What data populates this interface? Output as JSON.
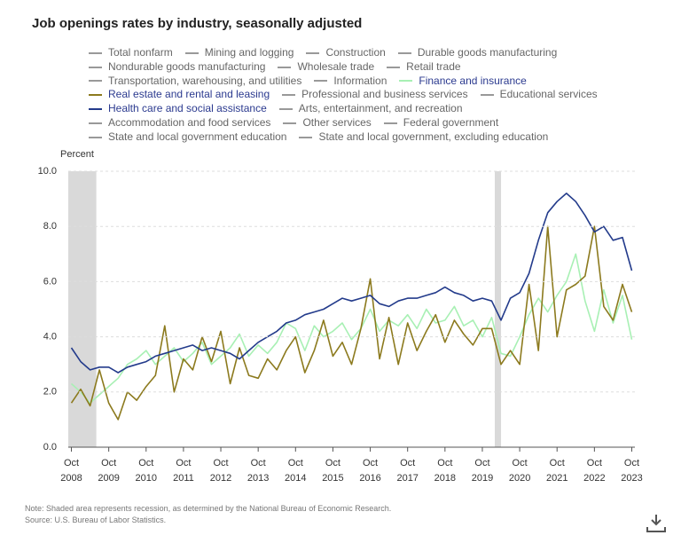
{
  "chart_data": {
    "type": "line",
    "title": "Job openings rates by industry, seasonally adjusted",
    "ylabel": "Percent",
    "x": [
      "2008-10",
      "2009-01",
      "2009-04",
      "2009-07",
      "2009-10",
      "2010-01",
      "2010-04",
      "2010-07",
      "2010-10",
      "2011-01",
      "2011-04",
      "2011-07",
      "2011-10",
      "2012-01",
      "2012-04",
      "2012-07",
      "2012-10",
      "2013-01",
      "2013-04",
      "2013-07",
      "2013-10",
      "2014-01",
      "2014-04",
      "2014-07",
      "2014-10",
      "2015-01",
      "2015-04",
      "2015-07",
      "2015-10",
      "2016-01",
      "2016-04",
      "2016-07",
      "2016-10",
      "2017-01",
      "2017-04",
      "2017-07",
      "2017-10",
      "2018-01",
      "2018-04",
      "2018-07",
      "2018-10",
      "2019-01",
      "2019-04",
      "2019-07",
      "2019-10",
      "2020-01",
      "2020-04",
      "2020-07",
      "2020-10",
      "2021-01",
      "2021-04",
      "2021-07",
      "2021-10",
      "2022-01",
      "2022-04",
      "2022-07",
      "2022-10",
      "2023-01",
      "2023-04",
      "2023-07",
      "2023-10"
    ],
    "series": [
      {
        "name": "Total nonfarm",
        "color": "#999999",
        "visible": false
      },
      {
        "name": "Mining and logging",
        "color": "#999999",
        "visible": false
      },
      {
        "name": "Construction",
        "color": "#999999",
        "visible": false
      },
      {
        "name": "Durable goods manufacturing",
        "color": "#999999",
        "visible": false
      },
      {
        "name": "Nondurable goods manufacturing",
        "color": "#999999",
        "visible": false
      },
      {
        "name": "Wholesale trade",
        "color": "#999999",
        "visible": false
      },
      {
        "name": "Retail trade",
        "color": "#999999",
        "visible": false
      },
      {
        "name": "Transportation, warehousing, and utilities",
        "color": "#999999",
        "visible": false
      },
      {
        "name": "Information",
        "color": "#999999",
        "visible": false
      },
      {
        "name": "Finance and insurance",
        "color": "#a8f0b4",
        "visible": true,
        "values": [
          2.3,
          2.0,
          1.6,
          1.9,
          2.2,
          2.5,
          3.0,
          3.2,
          3.5,
          3.0,
          3.3,
          3.6,
          3.1,
          3.4,
          3.8,
          3.0,
          3.3,
          3.6,
          4.1,
          3.3,
          3.7,
          3.4,
          3.8,
          4.5,
          4.3,
          3.5,
          4.4,
          4.0,
          4.2,
          4.5,
          3.9,
          4.3,
          5.0,
          4.2,
          4.6,
          4.4,
          4.8,
          4.3,
          5.0,
          4.5,
          4.6,
          5.1,
          4.4,
          4.6,
          4.0,
          4.7,
          3.4,
          3.3,
          4.0,
          4.8,
          5.4,
          4.9,
          5.5,
          6.0,
          7.0,
          5.3,
          4.2,
          5.7,
          4.5,
          5.5,
          3.9
        ]
      },
      {
        "name": "Real estate and rental and leasing",
        "color": "#8c7a1e",
        "visible": true,
        "values": [
          1.6,
          2.1,
          1.5,
          2.8,
          1.6,
          1.0,
          2.0,
          1.7,
          2.2,
          2.6,
          4.4,
          2.0,
          3.2,
          2.8,
          4.0,
          3.1,
          4.2,
          2.3,
          3.6,
          2.6,
          2.5,
          3.2,
          2.8,
          3.5,
          4.0,
          2.7,
          3.5,
          4.6,
          3.3,
          3.8,
          3.0,
          4.3,
          6.1,
          3.2,
          4.7,
          3.0,
          4.5,
          3.5,
          4.2,
          4.8,
          3.8,
          4.6,
          4.1,
          3.7,
          4.3,
          4.3,
          3.0,
          3.5,
          3.0,
          5.9,
          3.5,
          8.0,
          4.0,
          5.7,
          5.9,
          6.2,
          8.0,
          5.1,
          4.6,
          5.9,
          4.9
        ]
      },
      {
        "name": "Professional and business services",
        "color": "#999999",
        "visible": false
      },
      {
        "name": "Educational services",
        "color": "#999999",
        "visible": false
      },
      {
        "name": "Health care and social assistance",
        "color": "#233b8b",
        "visible": true,
        "values": [
          3.6,
          3.1,
          2.8,
          2.9,
          2.9,
          2.7,
          2.9,
          3.0,
          3.1,
          3.3,
          3.4,
          3.5,
          3.6,
          3.7,
          3.5,
          3.6,
          3.5,
          3.4,
          3.2,
          3.5,
          3.8,
          4.0,
          4.2,
          4.5,
          4.6,
          4.8,
          4.9,
          5.0,
          5.2,
          5.4,
          5.3,
          5.4,
          5.5,
          5.2,
          5.1,
          5.3,
          5.4,
          5.4,
          5.5,
          5.6,
          5.8,
          5.6,
          5.5,
          5.3,
          5.4,
          5.3,
          4.6,
          5.4,
          5.6,
          6.3,
          7.5,
          8.5,
          8.9,
          9.2,
          8.9,
          8.4,
          7.8,
          8.0,
          7.5,
          7.6,
          6.4
        ]
      },
      {
        "name": "Arts, entertainment, and recreation",
        "color": "#999999",
        "visible": false
      },
      {
        "name": "Accommodation and food services",
        "color": "#999999",
        "visible": false
      },
      {
        "name": "Other services",
        "color": "#999999",
        "visible": false
      },
      {
        "name": "Federal government",
        "color": "#999999",
        "visible": false
      },
      {
        "name": "State and local government education",
        "color": "#999999",
        "visible": false
      },
      {
        "name": "State and local government, excluding education",
        "color": "#999999",
        "visible": false
      }
    ],
    "recessions": [
      [
        "2007-12",
        "2009-06"
      ],
      [
        "2020-02",
        "2020-04"
      ]
    ],
    "xlim": [
      "2008-09",
      "2023-11"
    ],
    "xticks": [
      {
        "value": "2008-10",
        "label": "Oct 2008"
      },
      {
        "value": "2009-10",
        "label": "Oct 2009"
      },
      {
        "value": "2010-10",
        "label": "Oct 2010"
      },
      {
        "value": "2011-10",
        "label": "Oct 2011"
      },
      {
        "value": "2012-10",
        "label": "Oct 2012"
      },
      {
        "value": "2013-10",
        "label": "Oct 2013"
      },
      {
        "value": "2014-10",
        "label": "Oct 2014"
      },
      {
        "value": "2015-10",
        "label": "Oct 2015"
      },
      {
        "value": "2016-10",
        "label": "Oct 2016"
      },
      {
        "value": "2017-10",
        "label": "Oct 2017"
      },
      {
        "value": "2018-10",
        "label": "Oct 2018"
      },
      {
        "value": "2019-10",
        "label": "Oct 2019"
      },
      {
        "value": "2020-10",
        "label": "Oct 2020"
      },
      {
        "value": "2021-10",
        "label": "Oct 2021"
      },
      {
        "value": "2022-10",
        "label": "Oct 2022"
      },
      {
        "value": "2023-10",
        "label": "Oct 2023"
      }
    ],
    "ylim": [
      0,
      10
    ],
    "yticks": [
      {
        "value": 0,
        "label": "0.0"
      },
      {
        "value": 2,
        "label": "2.0"
      },
      {
        "value": 4,
        "label": "4.0"
      },
      {
        "value": 6,
        "label": "6.0"
      },
      {
        "value": 8,
        "label": "8.0"
      },
      {
        "value": 10,
        "label": "10.0"
      }
    ],
    "grid": true,
    "notes": [
      "Note: Shaded area represents recession, as determined by the National Bureau of Economic Research.",
      "Source: U.S. Bureau of Labor Statistics."
    ]
  }
}
